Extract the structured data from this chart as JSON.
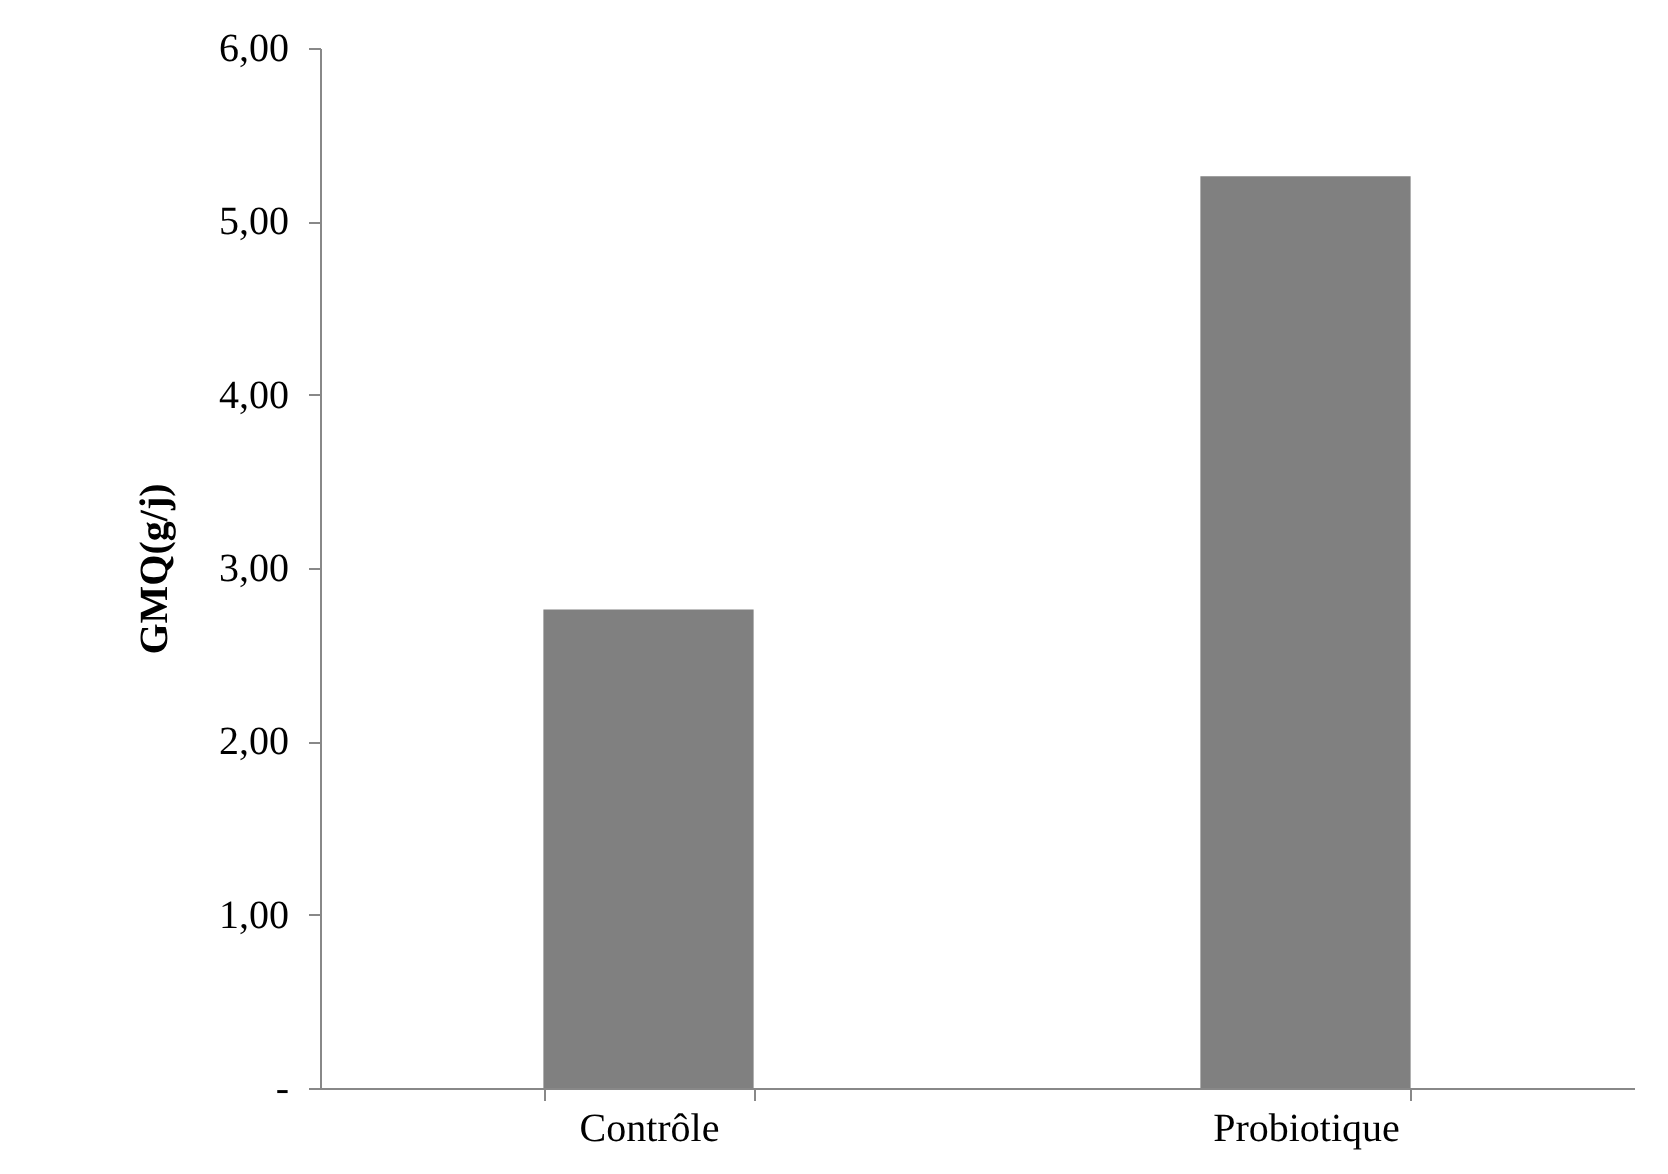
{
  "chart_data": {
    "type": "bar",
    "ylabel": "GMQ(g/j)",
    "categories": [
      "Contrôle",
      "Probiotique"
    ],
    "values": [
      2.76,
      5.26
    ],
    "color": "#808080",
    "ylim": [
      0,
      6
    ],
    "yticks": [
      {
        "value": 0,
        "label": "-"
      },
      {
        "value": 1,
        "label": "1,00"
      },
      {
        "value": 2,
        "label": "2,00"
      },
      {
        "value": 3,
        "label": "3,00"
      },
      {
        "value": 4,
        "label": "4,00"
      },
      {
        "value": 5,
        "label": "5,00"
      },
      {
        "value": 6,
        "label": "6,00"
      }
    ],
    "grid": false
  }
}
